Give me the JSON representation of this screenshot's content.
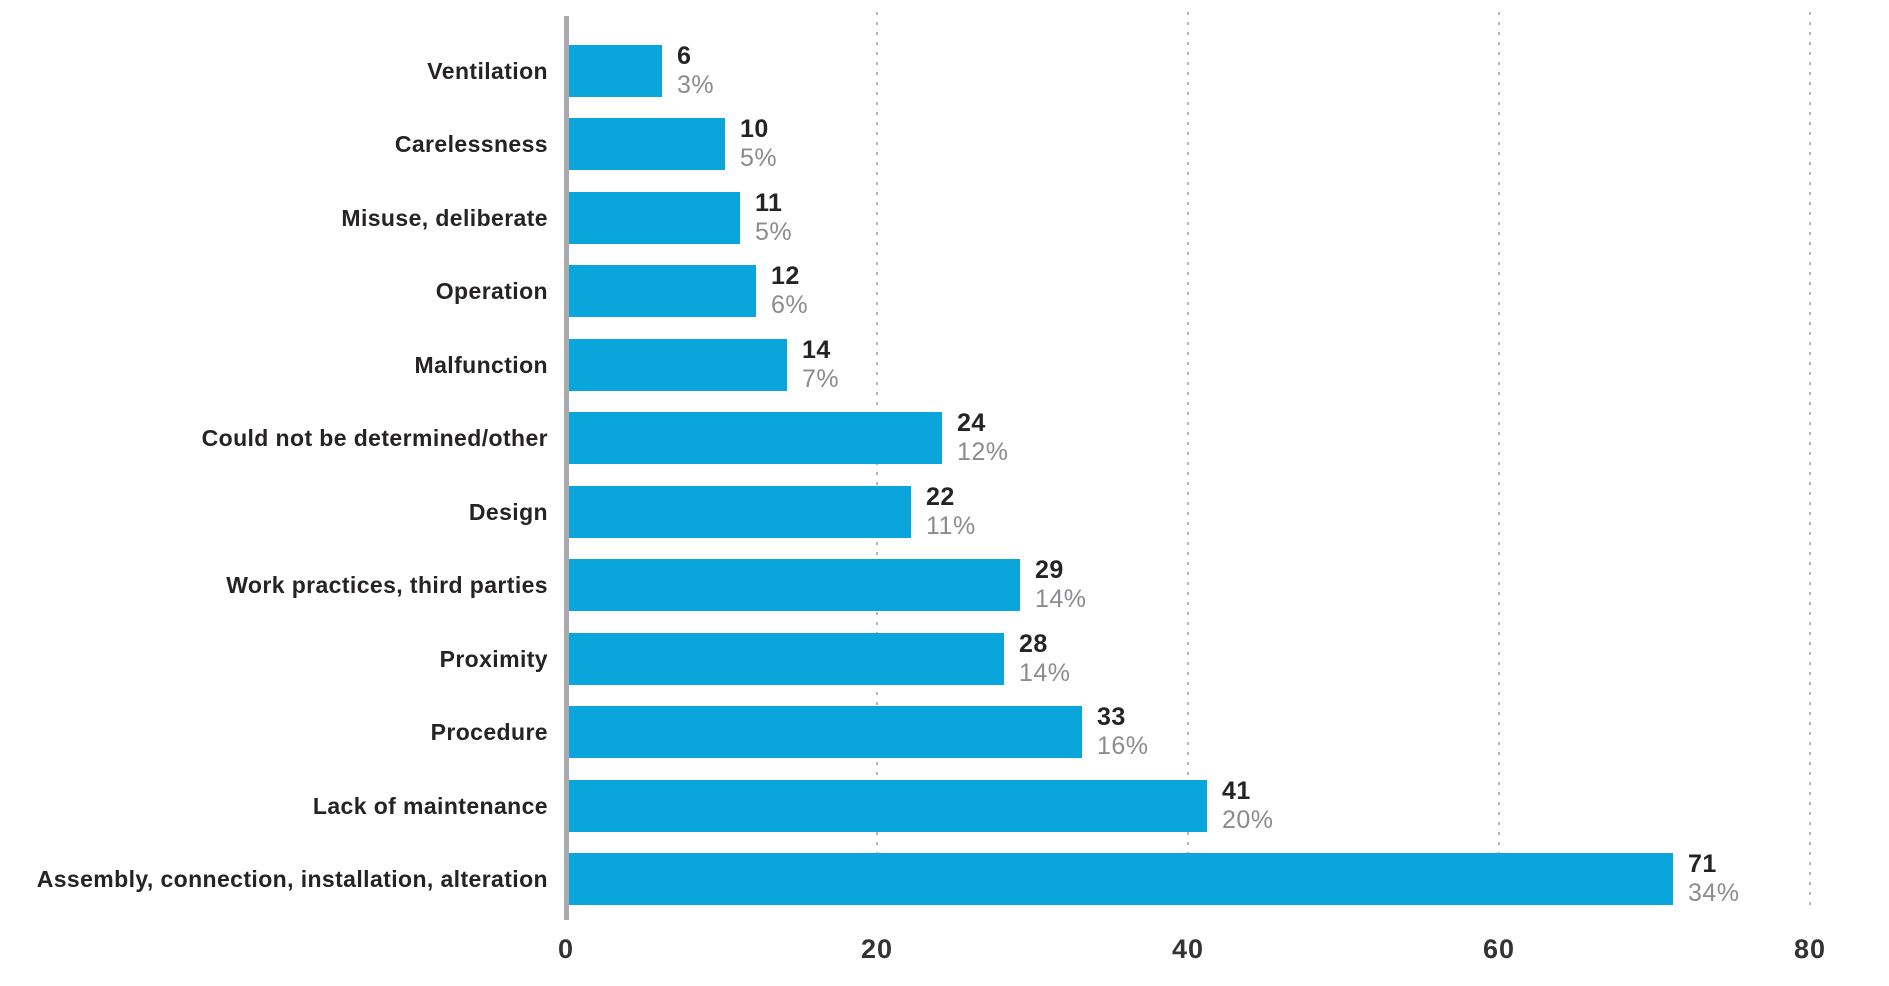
{
  "chart_data": {
    "type": "bar",
    "orientation": "horizontal",
    "title": "",
    "xlabel": "",
    "ylabel": "",
    "categories": [
      "Ventilation",
      "Carelessness",
      "Misuse, deliberate",
      "Operation",
      "Malfunction",
      "Could not be determined/other",
      "Design",
      "Work practices, third parties",
      "Proximity",
      "Procedure",
      "Lack of maintenance",
      "Assembly, connection, installation, alteration"
    ],
    "values": [
      6,
      10,
      11,
      12,
      14,
      24,
      22,
      29,
      28,
      33,
      41,
      71
    ],
    "percent_labels": [
      "3%",
      "5%",
      "5%",
      "6%",
      "7%",
      "12%",
      "11%",
      "14%",
      "14%",
      "16%",
      "20%",
      "34%"
    ],
    "x_ticks": [
      0,
      20,
      40,
      60,
      80
    ],
    "xlim": [
      0,
      80
    ],
    "grid": "vertical-dotted",
    "legend": "none",
    "colors": {
      "bar": "#0aa6db",
      "count_text": "#262324",
      "percent_text": "#8a8c8f",
      "axis_line": "#a8aaad",
      "gridline": "#b3b5b7",
      "tick_text": "#343233",
      "background": "#ffffff"
    }
  }
}
